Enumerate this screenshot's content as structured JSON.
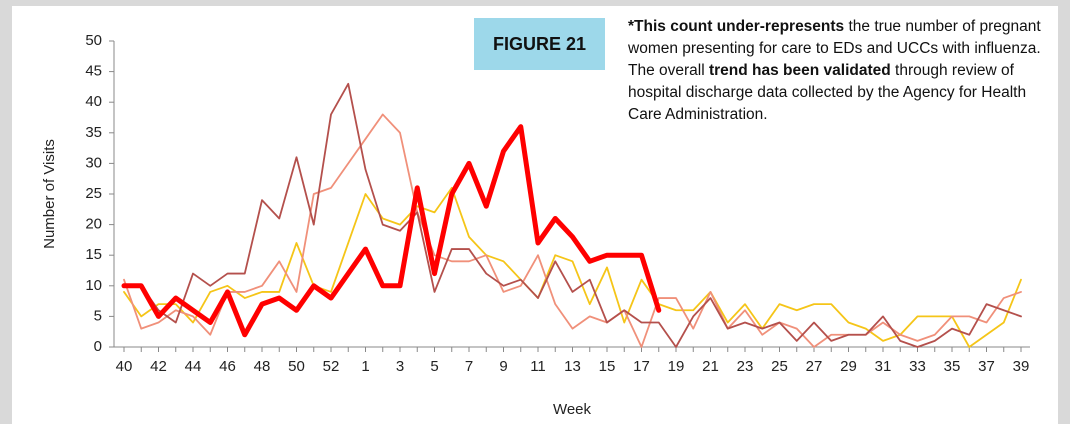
{
  "chart_data": {
    "type": "line",
    "figure_label": "FIGURE 21",
    "annotation": [
      {
        "text": "*This count under-represents",
        "bold": true
      },
      {
        "text": " the true number of pregnant women presenting for care to EDs and UCCs with influenza. The overall ",
        "bold": false
      },
      {
        "text": "trend has been validated",
        "bold": true
      },
      {
        "text": " through review of hospital discharge data collected by the Agency for Health Care Administration.",
        "bold": false
      }
    ],
    "x_label": "Week",
    "y_label": "Number of Visits",
    "categories": [
      "40",
      null,
      "42",
      null,
      "44",
      null,
      "46",
      null,
      "48",
      null,
      "50",
      null,
      "52",
      null,
      "1",
      null,
      "3",
      null,
      "5",
      null,
      "7",
      null,
      "9",
      null,
      "11",
      null,
      "13",
      null,
      "15",
      null,
      "17",
      null,
      "19",
      null,
      "21",
      null,
      "23",
      null,
      "25",
      null,
      "27",
      null,
      "29",
      null,
      "31",
      null,
      "33",
      null,
      "35",
      null,
      "37",
      null,
      "39"
    ],
    "series": [
      {
        "color": "#f5c518",
        "width": 1.8,
        "values": [
          9,
          5,
          7,
          7,
          4,
          9,
          10,
          8,
          9,
          9,
          17,
          10,
          9,
          17,
          25,
          21,
          20,
          23,
          22,
          26,
          18,
          15,
          14,
          11,
          8,
          15,
          14,
          7,
          13,
          4,
          11,
          7,
          6,
          6,
          9,
          4,
          7,
          3,
          7,
          6,
          7,
          7,
          4,
          3,
          1,
          2,
          5,
          5,
          5,
          0,
          2,
          4,
          11
        ]
      },
      {
        "color": "#f0907a",
        "width": 1.8,
        "values": [
          11,
          3,
          4,
          6,
          5,
          2,
          9,
          9,
          10,
          14,
          9,
          25,
          26,
          30,
          34,
          38,
          35,
          22,
          15,
          14,
          14,
          15,
          9,
          10,
          15,
          7,
          3,
          5,
          4,
          6,
          0,
          8,
          8,
          3,
          9,
          3,
          6,
          2,
          4,
          3,
          0,
          2,
          2,
          2,
          4,
          2,
          1,
          2,
          5,
          5,
          4,
          8,
          9
        ]
      },
      {
        "color": "#b4504c",
        "width": 1.8,
        "values": [
          10,
          10,
          6,
          4,
          12,
          10,
          12,
          12,
          24,
          21,
          31,
          20,
          38,
          43,
          29,
          20,
          19,
          22,
          9,
          16,
          16,
          12,
          10,
          11,
          8,
          14,
          9,
          11,
          4,
          6,
          4,
          4,
          0,
          5,
          8,
          3,
          4,
          3,
          4,
          1,
          4,
          1,
          2,
          2,
          5,
          1,
          0,
          1,
          3,
          2,
          7,
          6,
          5
        ]
      },
      {
        "color": "#ff0000",
        "width": 5,
        "values": [
          10,
          10,
          5,
          8,
          6,
          4,
          9,
          2,
          7,
          8,
          6,
          10,
          8,
          12,
          16,
          10,
          10,
          26,
          12,
          25,
          30,
          23,
          32,
          36,
          17,
          21,
          18,
          14,
          15,
          15,
          15,
          6,
          null,
          null,
          null,
          null,
          null,
          null,
          null,
          null,
          null,
          null,
          null,
          null,
          null,
          null,
          null,
          null,
          null,
          null,
          null,
          null,
          null
        ]
      }
    ],
    "ylim": [
      0,
      50
    ],
    "yticks": [
      0,
      5,
      10,
      15,
      20,
      25,
      30,
      35,
      40,
      45,
      50
    ],
    "grid": false
  }
}
